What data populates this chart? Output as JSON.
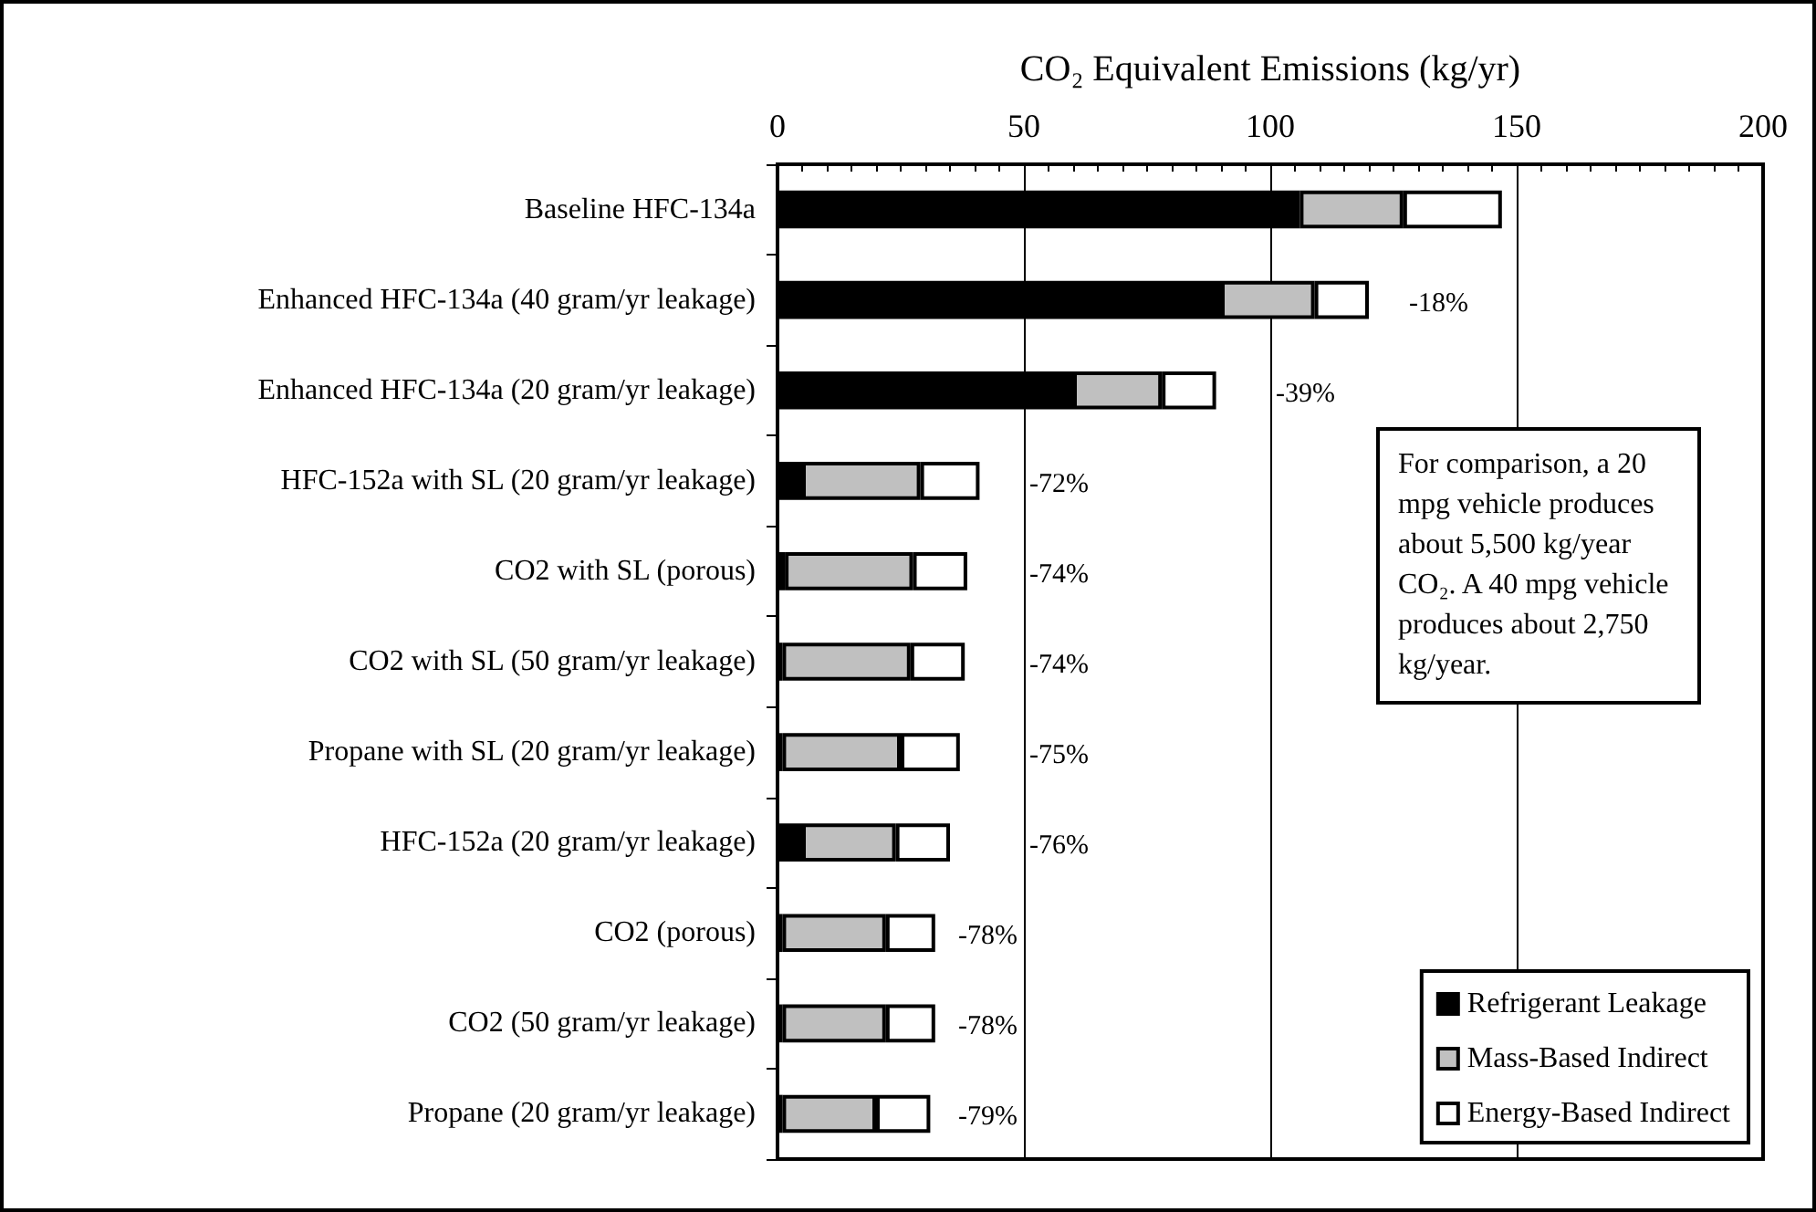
{
  "chart_data": {
    "type": "bar",
    "orientation": "horizontal",
    "stacked": true,
    "xlabel": "CO₂ Equivalent Emissions (kg/yr)",
    "categories": [
      "Baseline HFC-134a",
      "Enhanced HFC-134a (40 gram/yr leakage)",
      "Enhanced HFC-134a (20 gram/yr leakage)",
      "HFC-152a with SL (20 gram/yr leakage)",
      "CO2 with SL (porous)",
      "CO2 with SL (50 gram/yr leakage)",
      "Propane with SL (20 gram/yr leakage)",
      "HFC-152a (20 gram/yr leakage)",
      "CO2 (porous)",
      "CO2 (50 gram/yr leakage)",
      "Propane (20 gram/yr leakage)"
    ],
    "series": [
      {
        "name": "Refrigerant Leakage",
        "color": "#000000",
        "values": [
          106,
          90,
          60,
          5,
          1.5,
          1,
          1,
          5,
          1,
          1,
          1
        ]
      },
      {
        "name": "Mass-Based Indirect",
        "color": "#c0c0c0",
        "values": [
          21,
          19,
          18,
          24,
          26,
          26,
          24,
          19,
          21,
          21,
          19
        ]
      },
      {
        "name": "Energy-Based Indirect",
        "color": "#ffffff",
        "values": [
          20,
          11,
          11,
          12,
          11,
          11,
          12,
          11,
          10,
          10,
          11
        ]
      }
    ],
    "xlim": [
      0,
      200
    ],
    "xticks": [
      0,
      50,
      100,
      150,
      200
    ],
    "grid": "x",
    "legend": "bottom right",
    "annotations": [
      {
        "text": "-18%",
        "x": 120,
        "y": "Enhanced HFC-134a (40 gram/yr leakage)"
      },
      {
        "text": "-39%",
        "x": 89,
        "y": "Enhanced HFC-134a (20 gram/yr leakage)"
      },
      {
        "text": "-72%",
        "x": 41,
        "y": "HFC-152a with SL (20 gram/yr leakage)"
      },
      {
        "text": "-74%",
        "x": 38.5,
        "y": "CO2 with SL (porous)"
      },
      {
        "text": "-74%",
        "x": 38,
        "y": "CO2 with SL (50 gram/yr leakage)"
      },
      {
        "text": "-75%",
        "x": 37,
        "y": "Propane with SL (20 gram/yr leakage)"
      },
      {
        "text": "-76%",
        "x": 35,
        "y": "HFC-152a (20 gram/yr leakage)"
      },
      {
        "text": "-78%",
        "x": 32,
        "y": "CO2 (porous)"
      },
      {
        "text": "-78%",
        "x": 32,
        "y": "CO2 (50 gram/yr leakage)"
      },
      {
        "text": "-79%",
        "x": 31,
        "y": "Propane (20 gram/yr leakage)"
      },
      "For comparison, a 20 mpg vehicle produces about 5,500 kg/year CO₂.  A 40 mpg vehicle produces about 2,750 kg/year."
    ]
  }
}
